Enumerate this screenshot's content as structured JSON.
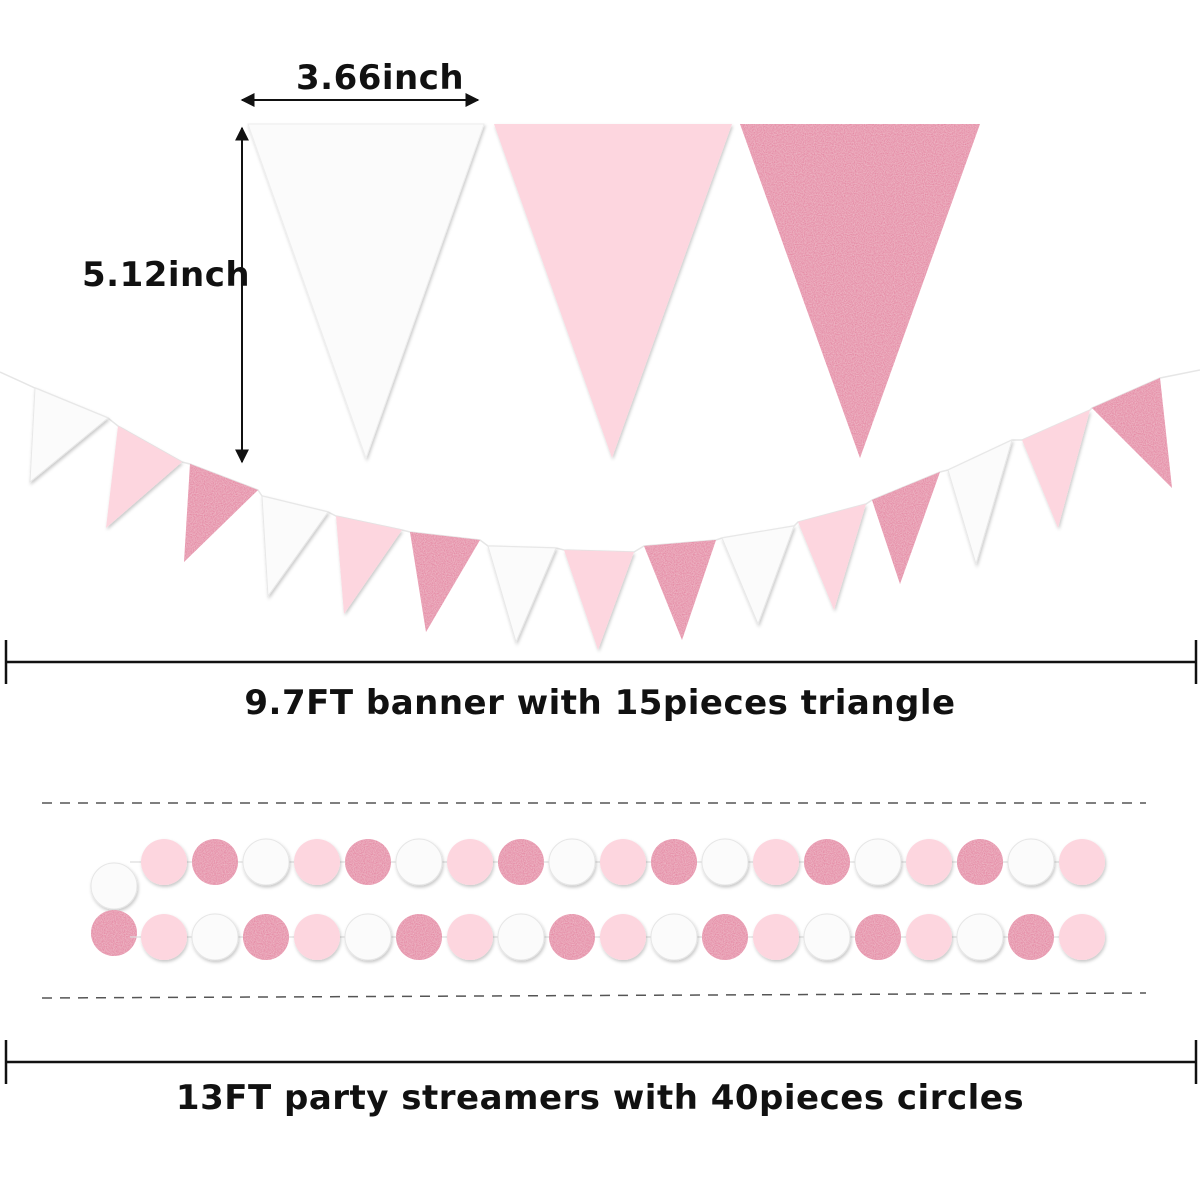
{
  "colors": {
    "white_flag": "#fbfbfb",
    "light_pink": "#fdd6df",
    "glitter_pink": "#e27397",
    "glitter_pink_dark": "#cf5580",
    "line": "#111111",
    "dash": "#555555"
  },
  "dimensions": {
    "width_label": "3.66inch",
    "height_label": "5.12inch"
  },
  "banner": {
    "caption": "9.7FT banner with 15pieces triangle",
    "length_ft": 9.7,
    "piece_count": 15,
    "color_pattern": [
      "white",
      "light-pink",
      "glitter-pink"
    ]
  },
  "streamers": {
    "caption": "13FT party streamers with 40pieces circles",
    "length_ft": 13,
    "piece_count": 40,
    "row_top_colors": [
      "white",
      "light-pink",
      "glitter-pink",
      "white",
      "light-pink",
      "glitter-pink",
      "white",
      "light-pink",
      "glitter-pink",
      "white",
      "light-pink",
      "glitter-pink",
      "white",
      "light-pink",
      "glitter-pink",
      "white",
      "light-pink",
      "glitter-pink",
      "white",
      "light-pink"
    ],
    "row_bottom_colors": [
      "glitter-pink",
      "light-pink",
      "white",
      "glitter-pink",
      "light-pink",
      "white",
      "glitter-pink",
      "light-pink",
      "white",
      "glitter-pink",
      "light-pink",
      "white",
      "glitter-pink",
      "light-pink",
      "white",
      "glitter-pink",
      "light-pink",
      "white",
      "glitter-pink",
      "light-pink"
    ]
  }
}
